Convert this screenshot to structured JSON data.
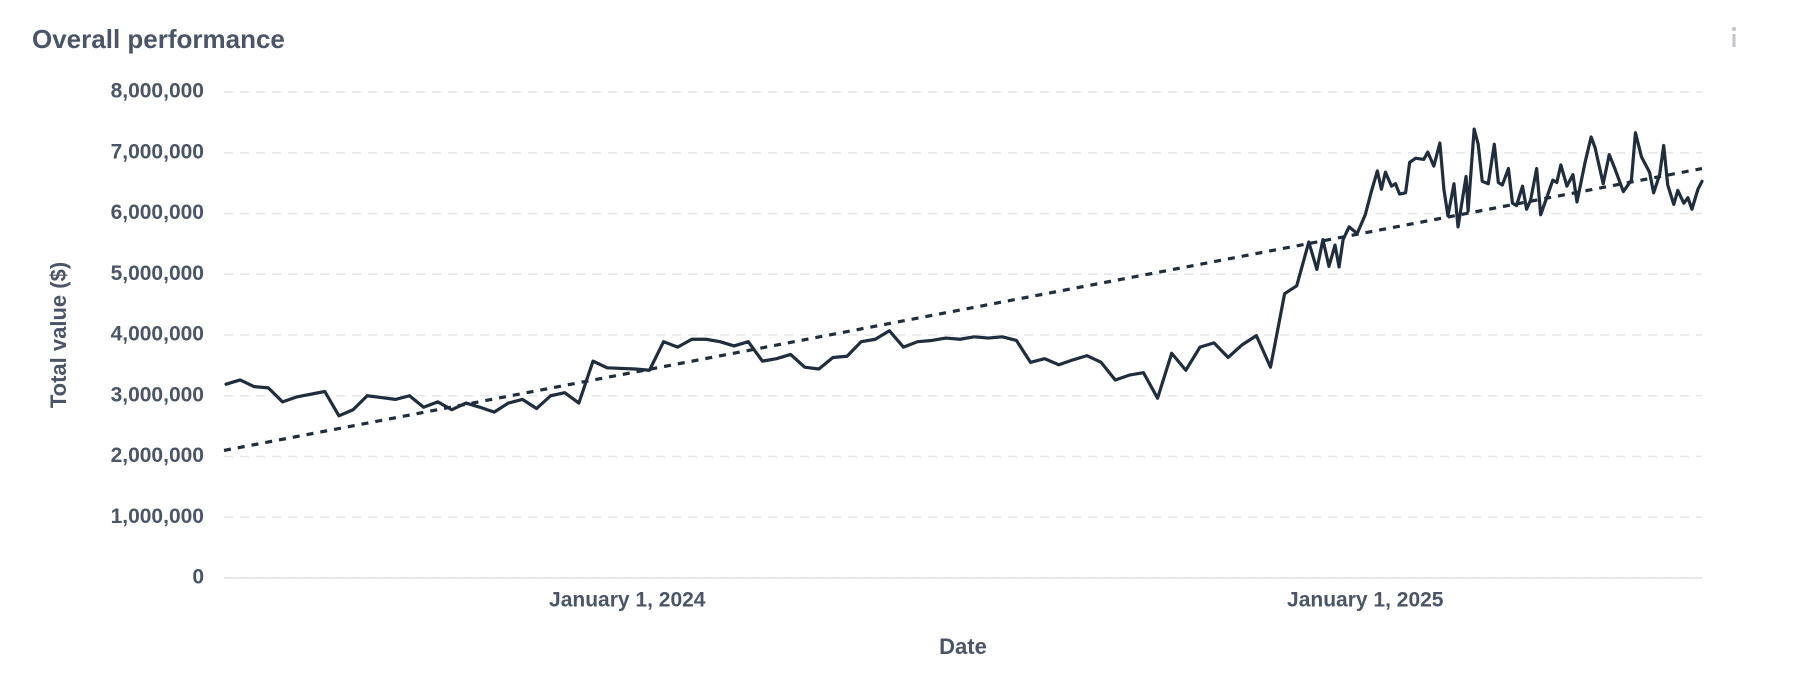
{
  "chart_data": {
    "type": "line",
    "title": "Overall performance",
    "x_label": "Date",
    "y_label": "Total value ($)",
    "xlim": [
      "2023-06-15",
      "2025-06-17"
    ],
    "xticks": [
      {
        "value": "2024-01-01",
        "label": "January 1, 2024"
      },
      {
        "value": "2025-01-01",
        "label": "January 1, 2025"
      }
    ],
    "ylim": [
      0,
      8000000
    ],
    "yticks": [
      0,
      {
        "value": 1000000,
        "label": "1,000,000"
      },
      {
        "value": 2000000,
        "label": "2,000,000"
      },
      {
        "value": 3000000,
        "label": "3,000,000"
      },
      {
        "value": 4000000,
        "label": "4,000,000"
      },
      {
        "value": 5000000,
        "label": "5,000,000"
      },
      {
        "value": 6000000,
        "label": "6,000,000"
      },
      {
        "value": 7000000,
        "label": "7,000,000"
      },
      {
        "value": 8000000,
        "label": "8,000,000"
      }
    ],
    "grid": true,
    "series": [
      {
        "color": "#1f2d3d",
        "dashed": false,
        "x": [
          "2023-06-16",
          "2023-06-23",
          "2023-06-30",
          "2023-07-07",
          "2023-07-14",
          "2023-07-21",
          "2023-08-04",
          "2023-08-11",
          "2023-08-18",
          "2023-08-25",
          "2023-09-08",
          "2023-09-15",
          "2023-09-22",
          "2023-09-29",
          "2023-10-06",
          "2023-10-13",
          "2023-10-20",
          "2023-10-27",
          "2023-11-03",
          "2023-11-10",
          "2023-11-17",
          "2023-11-24",
          "2023-12-01",
          "2023-12-08",
          "2023-12-15",
          "2023-12-22",
          "2024-01-05",
          "2024-01-12",
          "2024-01-19",
          "2024-01-26",
          "2024-02-02",
          "2024-02-09",
          "2024-02-16",
          "2024-02-23",
          "2024-03-01",
          "2024-03-08",
          "2024-03-15",
          "2024-03-22",
          "2024-03-29",
          "2024-04-05",
          "2024-04-12",
          "2024-04-19",
          "2024-04-26",
          "2024-05-03",
          "2024-05-10",
          "2024-05-17",
          "2024-05-24",
          "2024-05-31",
          "2024-06-07",
          "2024-06-14",
          "2024-06-21",
          "2024-06-28",
          "2024-07-05",
          "2024-07-12",
          "2024-07-19",
          "2024-07-26",
          "2024-08-02",
          "2024-08-09",
          "2024-08-16",
          "2024-08-23",
          "2024-08-30",
          "2024-09-06",
          "2024-09-13",
          "2024-09-20",
          "2024-09-27",
          "2024-10-04",
          "2024-10-11",
          "2024-10-18",
          "2024-10-25",
          "2024-11-01",
          "2024-11-08",
          "2024-11-15",
          "2024-11-22",
          "2024-11-28",
          "2024-12-04",
          "2024-12-08",
          "2024-12-11",
          "2024-12-14",
          "2024-12-17",
          "2024-12-19",
          "2024-12-21",
          "2024-12-24",
          "2024-12-28",
          "2025-01-01",
          "2025-01-04",
          "2025-01-07",
          "2025-01-09",
          "2025-01-11",
          "2025-01-14",
          "2025-01-16",
          "2025-01-18",
          "2025-01-21",
          "2025-01-23",
          "2025-01-26",
          "2025-01-30",
          "2025-02-01",
          "2025-02-04",
          "2025-02-07",
          "2025-02-09",
          "2025-02-11",
          "2025-02-14",
          "2025-02-16",
          "2025-02-20",
          "2025-02-21",
          "2025-02-24",
          "2025-02-26",
          "2025-02-28",
          "2025-03-03",
          "2025-03-06",
          "2025-03-08",
          "2025-03-10",
          "2025-03-13",
          "2025-03-15",
          "2025-03-17",
          "2025-03-20",
          "2025-03-22",
          "2025-03-24",
          "2025-03-27",
          "2025-03-29",
          "2025-04-01",
          "2025-04-04",
          "2025-04-06",
          "2025-04-08",
          "2025-04-11",
          "2025-04-14",
          "2025-04-16",
          "2025-04-20",
          "2025-04-23",
          "2025-04-25",
          "2025-04-29",
          "2025-05-02",
          "2025-05-05",
          "2025-05-09",
          "2025-05-13",
          "2025-05-15",
          "2025-05-18",
          "2025-05-22",
          "2025-05-24",
          "2025-05-27",
          "2025-05-29",
          "2025-05-31",
          "2025-06-03",
          "2025-06-05",
          "2025-06-08",
          "2025-06-10",
          "2025-06-12",
          "2025-06-15",
          "2025-06-17"
        ],
        "values": [
          3190000,
          3260000,
          3150000,
          3130000,
          2900000,
          2980000,
          3070000,
          2670000,
          2770000,
          3000000,
          2940000,
          3000000,
          2810000,
          2900000,
          2770000,
          2880000,
          2810000,
          2730000,
          2880000,
          2940000,
          2790000,
          3000000,
          3050000,
          2880000,
          3570000,
          3460000,
          3440000,
          3420000,
          3890000,
          3800000,
          3930000,
          3930000,
          3890000,
          3820000,
          3890000,
          3570000,
          3610000,
          3680000,
          3470000,
          3440000,
          3630000,
          3650000,
          3890000,
          3930000,
          4070000,
          3800000,
          3890000,
          3910000,
          3950000,
          3930000,
          3970000,
          3950000,
          3970000,
          3910000,
          3550000,
          3610000,
          3510000,
          3590000,
          3660000,
          3550000,
          3260000,
          3340000,
          3380000,
          2960000,
          3700000,
          3420000,
          3800000,
          3870000,
          3630000,
          3840000,
          3990000,
          3470000,
          4680000,
          4810000,
          5530000,
          5080000,
          5570000,
          5130000,
          5480000,
          5120000,
          5570000,
          5780000,
          5670000,
          5980000,
          6360000,
          6700000,
          6400000,
          6680000,
          6450000,
          6490000,
          6320000,
          6340000,
          6840000,
          6910000,
          6890000,
          7010000,
          6780000,
          7160000,
          6400000,
          5960000,
          6490000,
          5780000,
          6610000,
          6040000,
          7390000,
          7140000,
          6530000,
          6490000,
          7140000,
          6510000,
          6470000,
          6740000,
          6170000,
          6130000,
          6450000,
          6070000,
          6220000,
          6740000,
          5980000,
          6260000,
          6550000,
          6510000,
          6800000,
          6450000,
          6640000,
          6190000,
          6840000,
          7260000,
          7080000,
          6490000,
          6970000,
          6720000,
          6360000,
          6550000,
          7330000,
          6930000,
          6680000,
          6340000,
          6640000,
          7120000,
          6470000,
          6150000,
          6380000,
          6170000,
          6260000,
          6070000,
          6400000,
          6530000
        ]
      },
      {
        "color": "#1f2d3d",
        "dashed": true,
        "x": [
          "2023-06-15",
          "2025-06-17"
        ],
        "values": [
          2100000,
          6740000
        ]
      }
    ]
  }
}
